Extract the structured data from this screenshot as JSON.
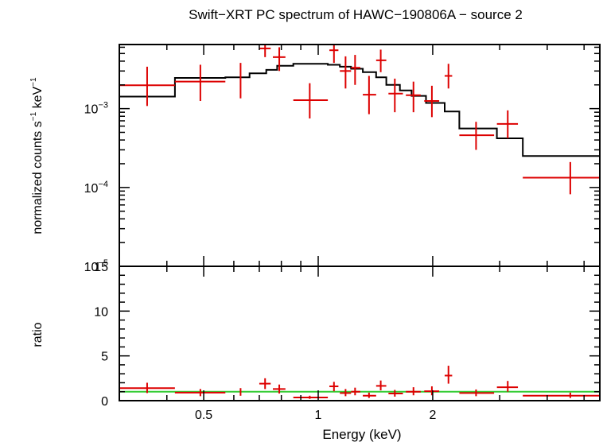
{
  "chart_data": {
    "type": "scatter",
    "title": "Swift−XRT PC spectrum of HAWC−190806A − source 2",
    "xlabel": "Energy (keV)",
    "x_scale": "log",
    "xlim": [
      0.3,
      5.5
    ],
    "x_ticks": [
      {
        "value": 0.5,
        "label": "0.5"
      },
      {
        "value": 1,
        "label": "1"
      },
      {
        "value": 2,
        "label": "2"
      }
    ],
    "colors": {
      "data": "#dd0000",
      "model": "#000000",
      "ratio_line": "#33cc33"
    },
    "top_panel": {
      "ylabel_parts": {
        "main": "normalized counts s",
        "sup1": "−1",
        "mid": " keV",
        "sup2": "−1"
      },
      "y_scale": "log",
      "ylim": [
        1e-05,
        0.0065
      ],
      "y_ticks": [
        {
          "value": 0.001,
          "base": "10",
          "exp": "−3"
        },
        {
          "value": 0.0001,
          "base": "10",
          "exp": "−4"
        },
        {
          "value": 1e-05,
          "base": "10",
          "exp": "−5"
        }
      ],
      "data": [
        {
          "x": 0.355,
          "xlo": 0.3,
          "xhi": 0.42,
          "y": 0.00198,
          "ylo": 0.00108,
          "yhi": 0.0034
        },
        {
          "x": 0.49,
          "xlo": 0.42,
          "xhi": 0.57,
          "y": 0.0022,
          "ylo": 0.00125,
          "yhi": 0.0036
        },
        {
          "x": 0.625,
          "xlo": 0.625,
          "xhi": 0.625,
          "y": 0.00235,
          "ylo": 0.00135,
          "yhi": 0.0038
        },
        {
          "x": 0.725,
          "xlo": 0.7,
          "xhi": 0.75,
          "y": 0.0058,
          "ylo": 0.0045,
          "yhi": 0.007
        },
        {
          "x": 0.79,
          "xlo": 0.76,
          "xhi": 0.82,
          "y": 0.0045,
          "ylo": 0.003,
          "yhi": 0.006
        },
        {
          "x": 0.95,
          "xlo": 0.86,
          "xhi": 1.06,
          "y": 0.00128,
          "ylo": 0.00075,
          "yhi": 0.0021
        },
        {
          "x": 1.1,
          "xlo": 1.07,
          "xhi": 1.13,
          "y": 0.0055,
          "ylo": 0.0038,
          "yhi": 0.007
        },
        {
          "x": 1.18,
          "xlo": 1.14,
          "xhi": 1.22,
          "y": 0.003,
          "ylo": 0.0018,
          "yhi": 0.0046
        },
        {
          "x": 1.25,
          "xlo": 1.22,
          "xhi": 1.29,
          "y": 0.0033,
          "ylo": 0.002,
          "yhi": 0.0048
        },
        {
          "x": 1.36,
          "xlo": 1.31,
          "xhi": 1.42,
          "y": 0.0015,
          "ylo": 0.00085,
          "yhi": 0.0026
        },
        {
          "x": 1.46,
          "xlo": 1.42,
          "xhi": 1.51,
          "y": 0.0041,
          "ylo": 0.0029,
          "yhi": 0.0056
        },
        {
          "x": 1.59,
          "xlo": 1.53,
          "xhi": 1.67,
          "y": 0.00155,
          "ylo": 0.0009,
          "yhi": 0.0024
        },
        {
          "x": 1.78,
          "xlo": 1.7,
          "xhi": 1.86,
          "y": 0.00148,
          "ylo": 0.0009,
          "yhi": 0.0022
        },
        {
          "x": 1.99,
          "xlo": 1.9,
          "xhi": 2.08,
          "y": 0.00125,
          "ylo": 0.00078,
          "yhi": 0.00195
        },
        {
          "x": 2.2,
          "xlo": 2.15,
          "xhi": 2.25,
          "y": 0.0026,
          "ylo": 0.0018,
          "yhi": 0.0037
        },
        {
          "x": 2.6,
          "xlo": 2.35,
          "xhi": 2.9,
          "y": 0.00046,
          "ylo": 0.0003,
          "yhi": 0.00068
        },
        {
          "x": 3.15,
          "xlo": 2.95,
          "xhi": 3.35,
          "y": 0.00064,
          "ylo": 0.00042,
          "yhi": 0.00095
        },
        {
          "x": 4.6,
          "xlo": 3.45,
          "xhi": 5.5,
          "y": 0.000133,
          "ylo": 8.2e-05,
          "yhi": 0.00021
        }
      ],
      "model_steps": [
        {
          "xlo": 0.3,
          "xhi": 0.42,
          "y": 0.00142
        },
        {
          "xlo": 0.42,
          "xhi": 0.57,
          "y": 0.00245
        },
        {
          "xlo": 0.57,
          "xhi": 0.66,
          "y": 0.0025
        },
        {
          "xlo": 0.66,
          "xhi": 0.73,
          "y": 0.0028
        },
        {
          "xlo": 0.73,
          "xhi": 0.78,
          "y": 0.0031
        },
        {
          "xlo": 0.78,
          "xhi": 0.86,
          "y": 0.0035
        },
        {
          "xlo": 0.86,
          "xhi": 1.06,
          "y": 0.0037
        },
        {
          "xlo": 1.06,
          "xhi": 1.14,
          "y": 0.0036
        },
        {
          "xlo": 1.14,
          "xhi": 1.22,
          "y": 0.0034
        },
        {
          "xlo": 1.22,
          "xhi": 1.31,
          "y": 0.0032
        },
        {
          "xlo": 1.31,
          "xhi": 1.42,
          "y": 0.0029
        },
        {
          "xlo": 1.42,
          "xhi": 1.51,
          "y": 0.0025
        },
        {
          "xlo": 1.51,
          "xhi": 1.64,
          "y": 0.002
        },
        {
          "xlo": 1.64,
          "xhi": 1.76,
          "y": 0.0017
        },
        {
          "xlo": 1.76,
          "xhi": 1.92,
          "y": 0.00145
        },
        {
          "xlo": 1.92,
          "xhi": 2.15,
          "y": 0.00118
        },
        {
          "xlo": 2.15,
          "xhi": 2.35,
          "y": 0.00092
        },
        {
          "xlo": 2.35,
          "xhi": 2.95,
          "y": 0.00056
        },
        {
          "xlo": 2.95,
          "xhi": 3.45,
          "y": 0.00042
        },
        {
          "xlo": 3.45,
          "xhi": 5.5,
          "y": 0.00025
        }
      ]
    },
    "bottom_panel": {
      "ylabel": "ratio",
      "y_scale": "linear",
      "ylim": [
        0,
        15
      ],
      "y_ticks": [
        {
          "value": 0,
          "label": "0"
        },
        {
          "value": 5,
          "label": "5"
        },
        {
          "value": 10,
          "label": "10"
        },
        {
          "value": 15,
          "label": "15"
        }
      ],
      "reference_line": 1,
      "data": [
        {
          "x": 0.355,
          "xlo": 0.3,
          "xhi": 0.42,
          "y": 1.4,
          "ylo": 0.85,
          "yhi": 2.0
        },
        {
          "x": 0.49,
          "xlo": 0.42,
          "xhi": 0.57,
          "y": 0.9,
          "ylo": 0.5,
          "yhi": 1.3
        },
        {
          "x": 0.625,
          "xlo": 0.625,
          "xhi": 0.625,
          "y": 0.95,
          "ylo": 0.55,
          "yhi": 1.4
        },
        {
          "x": 0.725,
          "xlo": 0.7,
          "xhi": 0.75,
          "y": 1.9,
          "ylo": 1.3,
          "yhi": 2.5
        },
        {
          "x": 0.79,
          "xlo": 0.76,
          "xhi": 0.82,
          "y": 1.3,
          "ylo": 0.8,
          "yhi": 1.8
        },
        {
          "x": 0.95,
          "xlo": 0.86,
          "xhi": 1.06,
          "y": 0.35,
          "ylo": 0.2,
          "yhi": 0.55
        },
        {
          "x": 1.1,
          "xlo": 1.07,
          "xhi": 1.13,
          "y": 1.6,
          "ylo": 1.05,
          "yhi": 2.1
        },
        {
          "x": 1.18,
          "xlo": 1.14,
          "xhi": 1.22,
          "y": 0.85,
          "ylo": 0.5,
          "yhi": 1.3
        },
        {
          "x": 1.25,
          "xlo": 1.22,
          "xhi": 1.29,
          "y": 1.0,
          "ylo": 0.6,
          "yhi": 1.45
        },
        {
          "x": 1.36,
          "xlo": 1.31,
          "xhi": 1.42,
          "y": 0.55,
          "ylo": 0.3,
          "yhi": 0.9
        },
        {
          "x": 1.46,
          "xlo": 1.42,
          "xhi": 1.51,
          "y": 1.65,
          "ylo": 1.15,
          "yhi": 2.25
        },
        {
          "x": 1.59,
          "xlo": 1.53,
          "xhi": 1.67,
          "y": 0.8,
          "ylo": 0.45,
          "yhi": 1.2
        },
        {
          "x": 1.78,
          "xlo": 1.7,
          "xhi": 1.86,
          "y": 1.0,
          "ylo": 0.6,
          "yhi": 1.5
        },
        {
          "x": 1.99,
          "xlo": 1.9,
          "xhi": 2.08,
          "y": 1.05,
          "ylo": 0.6,
          "yhi": 1.6
        },
        {
          "x": 2.2,
          "xlo": 2.15,
          "xhi": 2.25,
          "y": 2.8,
          "ylo": 1.9,
          "yhi": 3.9
        },
        {
          "x": 2.6,
          "xlo": 2.35,
          "xhi": 2.9,
          "y": 0.85,
          "ylo": 0.5,
          "yhi": 1.25
        },
        {
          "x": 3.15,
          "xlo": 2.95,
          "xhi": 3.35,
          "y": 1.5,
          "ylo": 1.0,
          "yhi": 2.2
        },
        {
          "x": 4.6,
          "xlo": 3.45,
          "xhi": 5.5,
          "y": 0.55,
          "ylo": 0.3,
          "yhi": 0.9
        }
      ]
    }
  }
}
